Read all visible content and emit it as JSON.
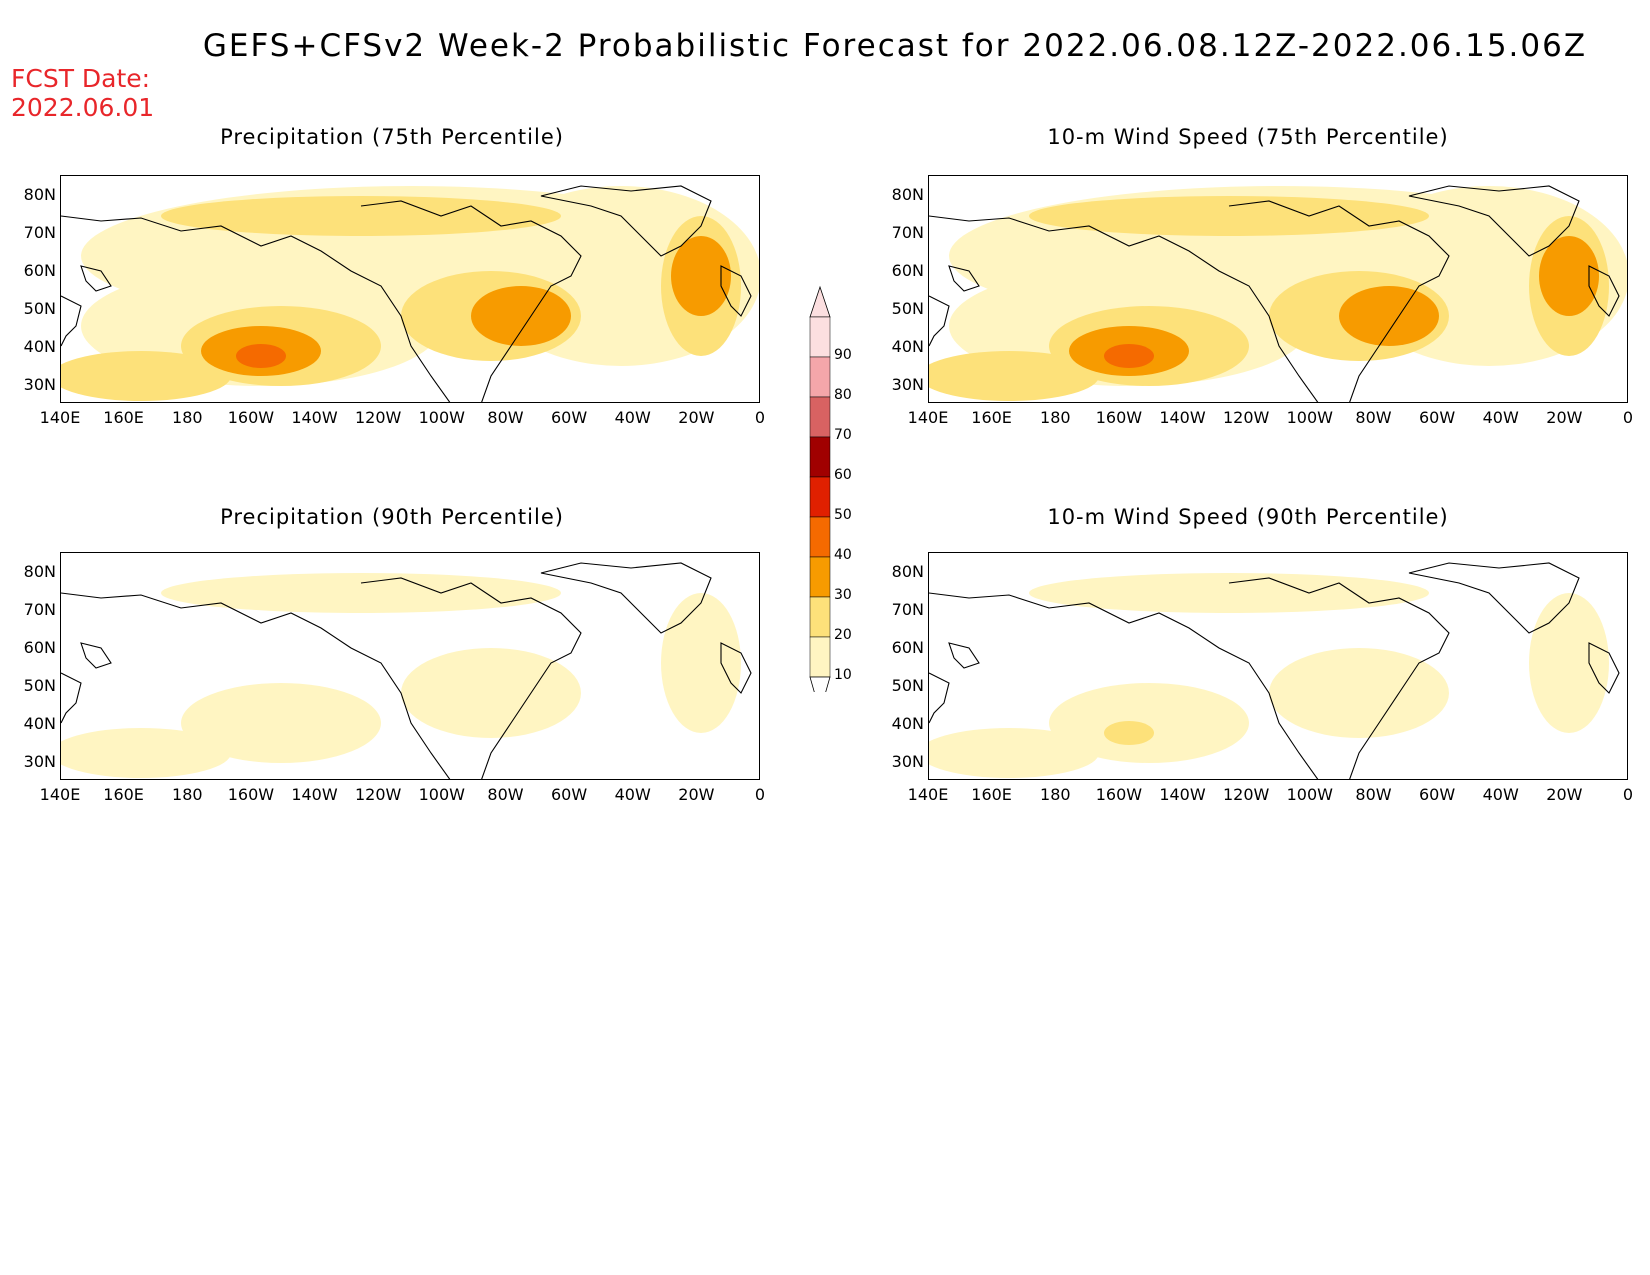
{
  "header": {
    "title": "GEFS+CFSv2 Week-2 Probabilistic Forecast for 2022.06.08.12Z-2022.06.15.06Z",
    "fcst_label": "FCST Date:",
    "fcst_date": "2022.06.01"
  },
  "panels": [
    {
      "title": "Precipitation (75th Percentile)",
      "intensity": 0.9
    },
    {
      "title": "10-m Wind Speed (75th Percentile)",
      "intensity": 1.0
    },
    {
      "title": "Precipitation (90th Percentile)",
      "intensity": 0.35
    },
    {
      "title": "10-m Wind Speed (90th Percentile)",
      "intensity": 0.4
    }
  ],
  "axes": {
    "lat_labels": [
      "80N",
      "70N",
      "60N",
      "50N",
      "40N",
      "30N"
    ],
    "lon_labels": [
      "140E",
      "160E",
      "180",
      "160W",
      "140W",
      "120W",
      "100W",
      "80W",
      "60W",
      "40W",
      "20W",
      "0"
    ]
  },
  "colorbar": {
    "labels": [
      "90",
      "80",
      "70",
      "60",
      "50",
      "40",
      "30",
      "20",
      "10"
    ],
    "colors": [
      "#fcdfe0",
      "#f4a6aa",
      "#d86262",
      "#a00000",
      "#e02000",
      "#f56a00",
      "#f79b00",
      "#fde17a",
      "#fff5c2"
    ]
  }
}
